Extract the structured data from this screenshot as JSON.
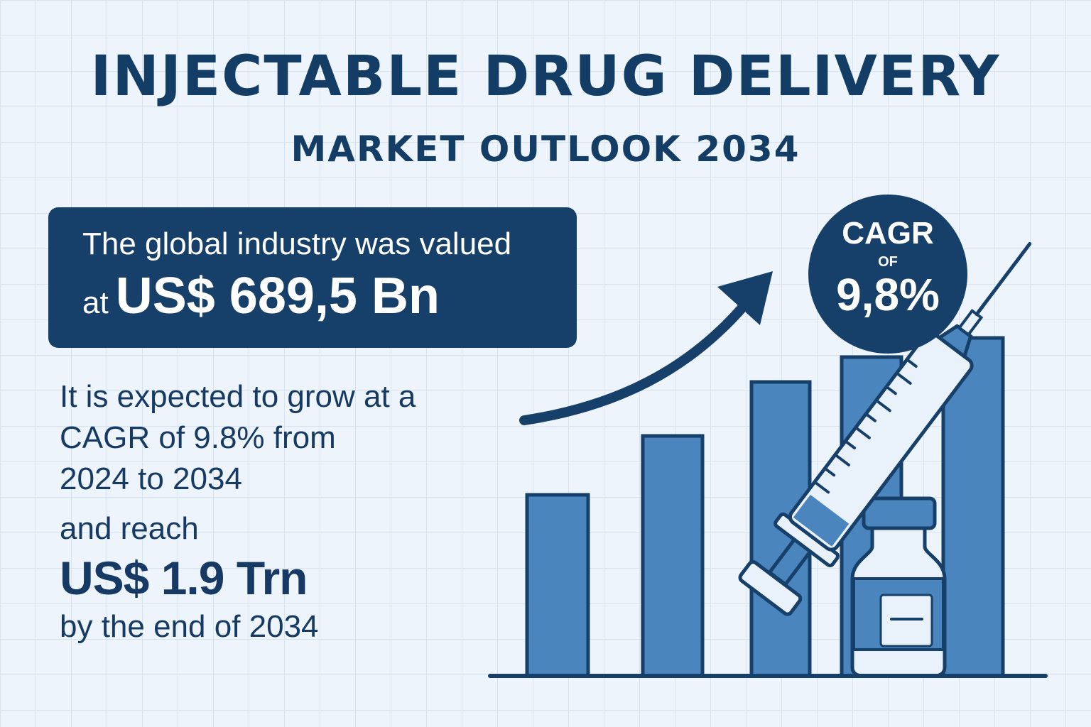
{
  "header": {
    "title": "INJECTABLE DRUG DELIVERY",
    "subtitle": "MARKET OUTLOOK 2034"
  },
  "valuation": {
    "intro": "The global industry was valued",
    "prefix": "at",
    "amount": "US$ 689,5 Bn"
  },
  "growth": {
    "line1": "It is expected to grow at a",
    "line2": "CAGR of 9.8% from",
    "line3": "2024 to 2034",
    "line4": "and reach",
    "amount": "US$ 1.9 Trn",
    "line5": "by the end of 2034"
  },
  "badge": {
    "top": "CAGR",
    "middle": "OF",
    "value": "9,8%"
  },
  "illustration": {
    "relative_bar_heights": [
      0.37,
      0.49,
      0.6,
      0.65,
      0.69
    ],
    "icons": [
      "growth-arrow-icon",
      "syringe-icon",
      "vial-icon"
    ]
  },
  "colors": {
    "navy": "#163f69",
    "bar": "#4a86bd",
    "background": "#eef4fb"
  }
}
